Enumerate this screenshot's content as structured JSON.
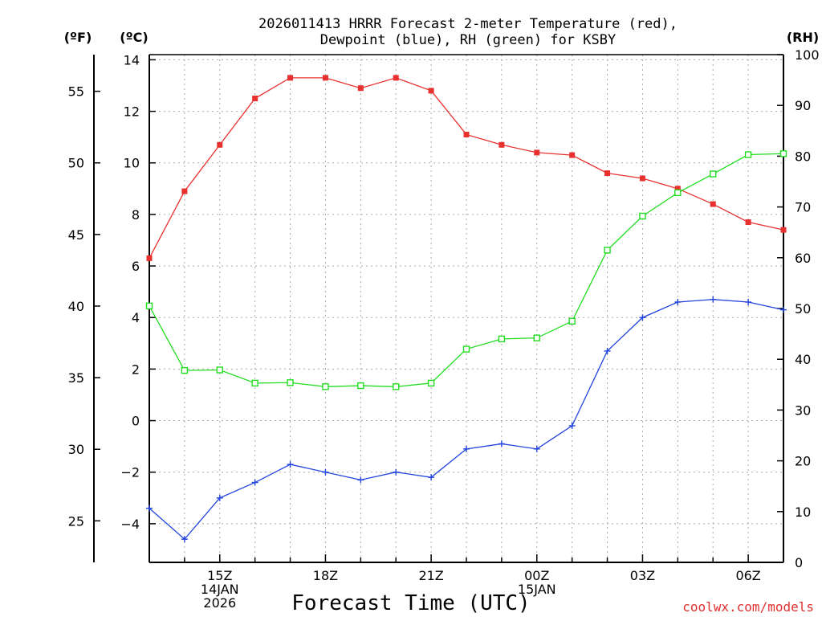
{
  "chart_data": {
    "type": "line",
    "title_line1": "2026011413 HRRR Forecast 2-meter Temperature (red),",
    "title_line2": "Dewpoint (blue), RH (green) for KSBY",
    "xlabel": "Forecast Time (UTC)",
    "credit": "coolwx.com/models",
    "unit_f": "(ºF)",
    "unit_c": "(ºC)",
    "unit_rh": "(RH)",
    "x_hours": [
      13,
      14,
      15,
      16,
      17,
      18,
      19,
      20,
      21,
      22,
      23,
      24,
      25,
      26,
      27,
      28,
      29,
      30,
      31
    ],
    "x_range": [
      13,
      31
    ],
    "c_range": [
      -5.5,
      14.2
    ],
    "rh_range": [
      0,
      100
    ],
    "x_ticks": [
      {
        "hour": 15,
        "lines": [
          "15Z",
          "14JAN",
          "2026"
        ]
      },
      {
        "hour": 18,
        "lines": [
          "18Z"
        ]
      },
      {
        "hour": 21,
        "lines": [
          "21Z"
        ]
      },
      {
        "hour": 24,
        "lines": [
          "00Z",
          "15JAN"
        ]
      },
      {
        "hour": 27,
        "lines": [
          "03Z"
        ]
      },
      {
        "hour": 30,
        "lines": [
          "06Z"
        ]
      }
    ],
    "c_ticks": [
      14,
      12,
      10,
      8,
      6,
      4,
      2,
      0,
      -2,
      -4
    ],
    "c_tick_labels": [
      "14",
      "12",
      "10",
      "8",
      "6",
      "4",
      "2",
      "0",
      "−2",
      "−4"
    ],
    "f_ticks": [
      55,
      50,
      45,
      40,
      35,
      30,
      25
    ],
    "f_tick_labels": [
      "55",
      "50",
      "45",
      "40",
      "35",
      "30",
      "25"
    ],
    "rh_ticks": [
      100,
      90,
      80,
      70,
      60,
      50,
      40,
      30,
      20,
      10,
      0
    ],
    "rh_tick_labels": [
      "100",
      "90",
      "80",
      "70",
      "60",
      "50",
      "40",
      "30",
      "20",
      "10",
      "0"
    ],
    "series": [
      {
        "name": "Temperature",
        "axis": "c",
        "color": "#e8302f",
        "marker": "filled-square",
        "values": [
          6.3,
          8.9,
          10.7,
          12.5,
          13.3,
          13.3,
          12.9,
          13.3,
          12.8,
          11.1,
          10.7,
          10.4,
          10.3,
          9.6,
          9.4,
          9.0,
          8.4,
          7.7,
          7.4
        ]
      },
      {
        "name": "Dewpoint",
        "axis": "c",
        "color": "#2244dd",
        "marker": "plus",
        "values": [
          -3.4,
          -4.6,
          -3.0,
          -2.4,
          -1.7,
          -2.0,
          -2.3,
          -2.0,
          -2.2,
          -1.1,
          -0.9,
          -1.1,
          -0.2,
          2.7,
          4.0,
          4.6,
          4.7,
          4.6,
          4.3
        ]
      },
      {
        "name": "RH",
        "axis": "rh",
        "color": "#22dd22",
        "marker": "open-square",
        "values": [
          50.5,
          37.8,
          37.9,
          35.3,
          35.4,
          34.6,
          34.8,
          34.6,
          35.3,
          42.0,
          44.0,
          44.2,
          47.5,
          61.5,
          68.2,
          72.8,
          76.5,
          80.3,
          80.5
        ]
      }
    ]
  }
}
